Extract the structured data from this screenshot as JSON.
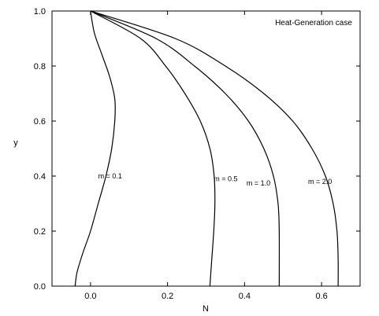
{
  "chart_data": {
    "type": "line",
    "title": "",
    "xlabel": "N",
    "ylabel": "y",
    "xlim": [
      -0.1,
      0.7
    ],
    "ylim": [
      0.0,
      1.0
    ],
    "x_ticks": [
      "0.0",
      "0.2",
      "0.4",
      "0.6"
    ],
    "x_tick_values": [
      0.0,
      0.2,
      0.4,
      0.6
    ],
    "y_ticks": [
      "0.0",
      "0.2",
      "0.4",
      "0.6",
      "0.8",
      "1.0"
    ],
    "y_tick_values": [
      0.0,
      0.2,
      0.4,
      0.6,
      0.8,
      1.0
    ],
    "grid": false,
    "annotation": "Heat-Generation case",
    "series": [
      {
        "name": "m = 0.1",
        "label_at": [
          0.02,
          0.4
        ],
        "points": [
          [
            -0.04,
            0.0
          ],
          [
            -0.035,
            0.05
          ],
          [
            -0.02,
            0.12
          ],
          [
            0.0,
            0.2
          ],
          [
            0.02,
            0.3
          ],
          [
            0.04,
            0.4
          ],
          [
            0.055,
            0.5
          ],
          [
            0.063,
            0.6
          ],
          [
            0.063,
            0.68
          ],
          [
            0.05,
            0.76
          ],
          [
            0.03,
            0.84
          ],
          [
            0.01,
            0.92
          ],
          [
            0.0,
            1.0
          ]
        ]
      },
      {
        "name": "m = 0.5",
        "label_at": [
          0.32,
          0.39
        ],
        "points": [
          [
            0.31,
            0.0
          ],
          [
            0.315,
            0.1
          ],
          [
            0.32,
            0.2
          ],
          [
            0.323,
            0.3
          ],
          [
            0.321,
            0.4
          ],
          [
            0.31,
            0.5
          ],
          [
            0.285,
            0.6
          ],
          [
            0.245,
            0.7
          ],
          [
            0.195,
            0.8
          ],
          [
            0.13,
            0.9
          ],
          [
            0.0,
            1.0
          ]
        ]
      },
      {
        "name": "m = 1.0",
        "label_at": [
          0.405,
          0.375
        ],
        "points": [
          [
            0.49,
            0.0
          ],
          [
            0.49,
            0.2
          ],
          [
            0.487,
            0.3
          ],
          [
            0.475,
            0.4
          ],
          [
            0.45,
            0.5
          ],
          [
            0.41,
            0.6
          ],
          [
            0.35,
            0.7
          ],
          [
            0.27,
            0.8
          ],
          [
            0.17,
            0.9
          ],
          [
            0.0,
            1.0
          ]
        ]
      },
      {
        "name": "m = 2.0",
        "label_at": [
          0.565,
          0.38
        ],
        "points": [
          [
            0.643,
            0.0
          ],
          [
            0.643,
            0.1
          ],
          [
            0.64,
            0.2
          ],
          [
            0.63,
            0.3
          ],
          [
            0.61,
            0.4
          ],
          [
            0.575,
            0.5
          ],
          [
            0.525,
            0.6
          ],
          [
            0.45,
            0.7
          ],
          [
            0.35,
            0.8
          ],
          [
            0.22,
            0.9
          ],
          [
            0.0,
            1.0
          ]
        ]
      }
    ]
  }
}
